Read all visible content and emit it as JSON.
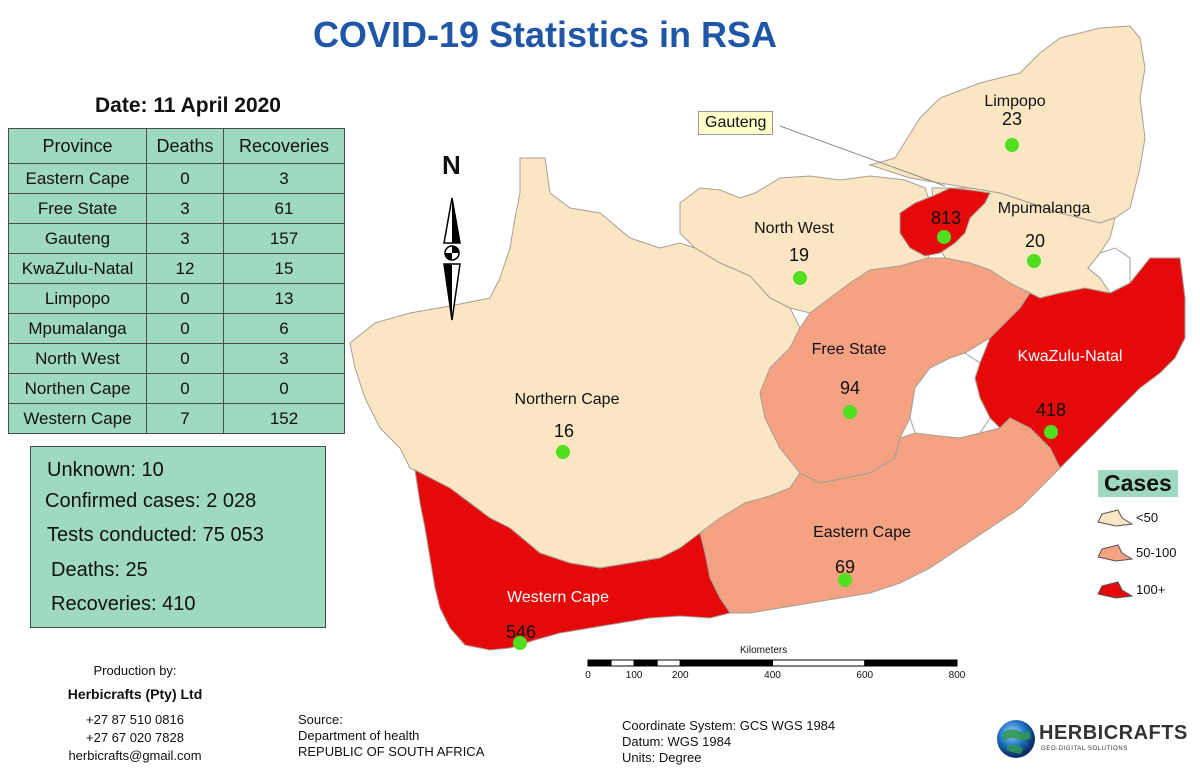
{
  "title": "COVID-19 Statistics in RSA",
  "date_label": "Date: 11 April 2020",
  "table": {
    "headers": [
      "Province",
      "Deaths",
      "Recoveries"
    ],
    "rows": [
      [
        "Eastern Cape",
        "0",
        "3"
      ],
      [
        "Free State",
        "3",
        "61"
      ],
      [
        "Gauteng",
        "3",
        "157"
      ],
      [
        "KwaZulu-Natal",
        "12",
        "15"
      ],
      [
        "Limpopo",
        "0",
        "13"
      ],
      [
        "Mpumalanga",
        "0",
        "6"
      ],
      [
        "North West",
        "0",
        "3"
      ],
      [
        "Northen Cape",
        "0",
        "0"
      ],
      [
        "Western Cape",
        "7",
        "152"
      ]
    ]
  },
  "summary": {
    "unknown_label": "Unknown:",
    "unknown_value": "10",
    "confirmed_label": "Confirmed cases:",
    "confirmed_value": "2 028",
    "tests_label": "Tests conducted:",
    "tests_value": "75 053",
    "deaths_label": "Deaths:",
    "deaths_value": "25",
    "recoveries_label": "Recoveries:",
    "recoveries_value": "410"
  },
  "production": {
    "label": "Production by:",
    "company": "Herbicrafts (Pty) Ltd",
    "phone1": "+27 87 510 0816",
    "phone2": "+27 67 020 7828",
    "email": "herbicrafts@gmail.com"
  },
  "source": {
    "label": "Source:",
    "line1": "Department of health",
    "line2": "REPUBLIC OF SOUTH AFRICA"
  },
  "coordinate_info": {
    "system": "Coordinate System: GCS WGS 1984",
    "datum": "Datum: WGS 1984",
    "units": "Units: Degree"
  },
  "logo": {
    "name": "HERBICRAFTS",
    "tagline": "GEO-DIGITAL SOLUTIONS"
  },
  "north_arrow": "N",
  "callout": "Gauteng",
  "provinces": [
    {
      "name": "Limpopo",
      "cases": "23",
      "category": "<50"
    },
    {
      "name": "Gauteng",
      "cases": "813",
      "category": "100+"
    },
    {
      "name": "Mpumalanga",
      "cases": "20",
      "category": "<50"
    },
    {
      "name": "North West",
      "cases": "19",
      "category": "<50"
    },
    {
      "name": "Free State",
      "cases": "94",
      "category": "50-100"
    },
    {
      "name": "KwaZulu-Natal",
      "cases": "418",
      "category": "100+"
    },
    {
      "name": "Northern Cape",
      "cases": "16",
      "category": "<50"
    },
    {
      "name": "Eastern Cape",
      "cases": "69",
      "category": "50-100"
    },
    {
      "name": "Western Cape",
      "cases": "546",
      "category": "100+"
    }
  ],
  "legend": {
    "title": "Cases",
    "items": [
      {
        "label": "<50",
        "color": "#fbe6c3"
      },
      {
        "label": "50-100",
        "color": "#f5a283"
      },
      {
        "label": "100+",
        "color": "#e6090a"
      }
    ]
  },
  "scale_bar": {
    "title": "Kilometers",
    "ticks": [
      "0",
      "100",
      "200",
      "400",
      "600",
      "800"
    ]
  },
  "colors": {
    "low": "#fbe6c3",
    "mid": "#f5a283",
    "high": "#e6090a",
    "point": "#4fdf1e",
    "title": "#1f56a8",
    "panel": "#9fd9bf"
  }
}
